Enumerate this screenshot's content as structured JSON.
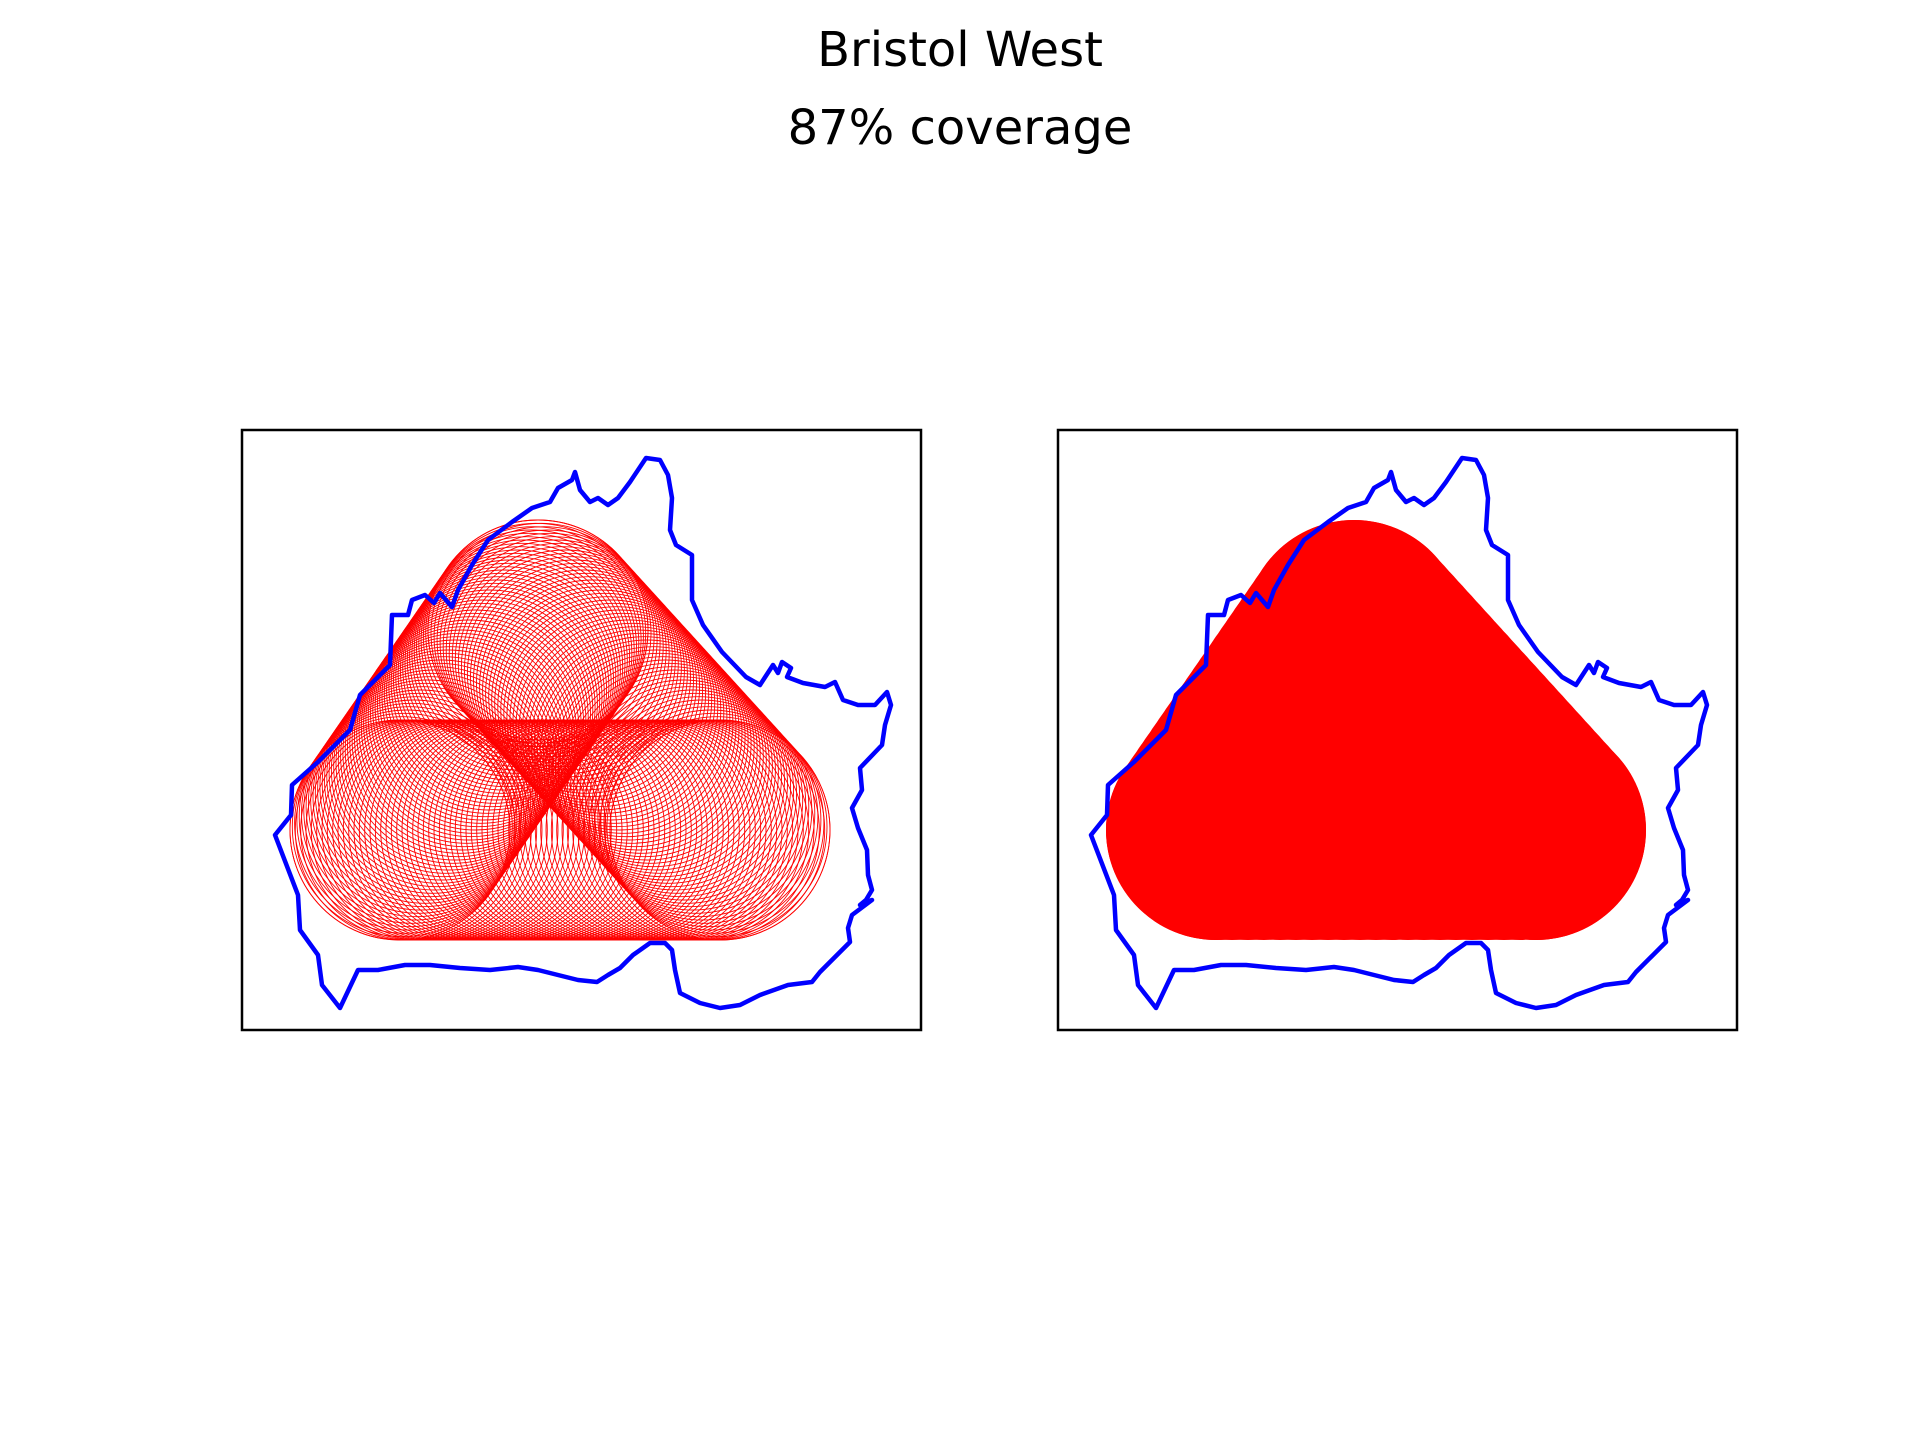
{
  "figure": {
    "title": "Bristol West",
    "subtitle": "87% coverage"
  },
  "colors": {
    "boundary": "#0000ff",
    "coverage": "#ff0000",
    "frame": "#000000",
    "background": "#ffffff"
  },
  "panels": [
    {
      "id": "left",
      "style": "outline"
    },
    {
      "id": "right",
      "style": "filled"
    }
  ]
}
